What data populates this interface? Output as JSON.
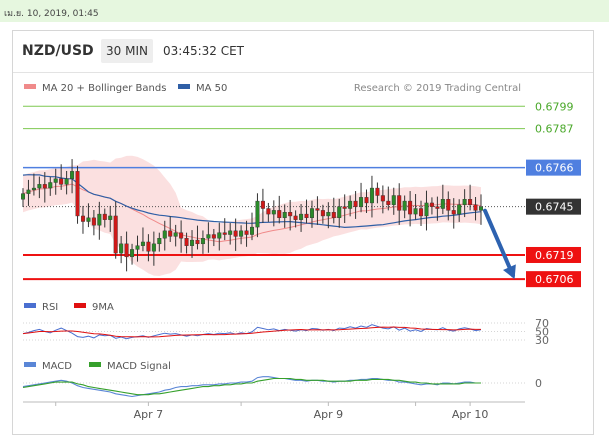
{
  "topbar": {
    "datetime": "เม.ย. 10, 2019, 01:45"
  },
  "header": {
    "symbol": "NZD/USD",
    "timeframe": "30 MIN",
    "time": "03:45:32 CET"
  },
  "main_legend": [
    {
      "label": "MA 20 + Bollinger Bands",
      "color": "#f08a8a"
    },
    {
      "label": "MA 50",
      "color": "#2f5fa6"
    }
  ],
  "credit": "Research © 2019 Trading Central",
  "chart_data": {
    "type": "candlestick",
    "price_range": [
      0.67,
      0.6805
    ],
    "levels": [
      {
        "value": 0.6799,
        "label": "0.6799",
        "kind": "target",
        "color": "#7ec850"
      },
      {
        "value": 0.6787,
        "label": "0.6787",
        "kind": "target",
        "color": "#7ec850"
      },
      {
        "value": 0.6766,
        "label": "0.6766",
        "kind": "resistance",
        "color": "#4f7fe0"
      },
      {
        "value": 0.6745,
        "label": "0.6745",
        "kind": "last",
        "color": "#333333"
      },
      {
        "value": 0.6719,
        "label": "0.6719",
        "kind": "support",
        "color": "#ee1111"
      },
      {
        "value": 0.6706,
        "label": "0.6706",
        "kind": "support",
        "color": "#ee1111"
      }
    ],
    "closes": [
      0.6752,
      0.6754,
      0.6755,
      0.6757,
      0.6755,
      0.6758,
      0.676,
      0.6757,
      0.676,
      0.6764,
      0.674,
      0.6737,
      0.6739,
      0.6735,
      0.6741,
      0.6738,
      0.674,
      0.672,
      0.6725,
      0.6718,
      0.6722,
      0.6724,
      0.6726,
      0.6721,
      0.6725,
      0.6728,
      0.6732,
      0.6729,
      0.6731,
      0.6728,
      0.6724,
      0.6727,
      0.6725,
      0.6728,
      0.673,
      0.6728,
      0.6731,
      0.673,
      0.6732,
      0.6729,
      0.6732,
      0.673,
      0.6734,
      0.6748,
      0.6744,
      0.6741,
      0.6743,
      0.6739,
      0.6742,
      0.674,
      0.6738,
      0.6741,
      0.6739,
      0.6744,
      0.6743,
      0.674,
      0.6742,
      0.6739,
      0.6745,
      0.6744,
      0.6748,
      0.6745,
      0.675,
      0.6747,
      0.6755,
      0.6751,
      0.6748,
      0.6746,
      0.6751,
      0.6743,
      0.6748,
      0.6741,
      0.6744,
      0.674,
      0.6747,
      0.6745,
      0.6744,
      0.6749,
      0.6743,
      0.6741,
      0.6746,
      0.6749,
      0.6746,
      0.6743,
      0.6745
    ],
    "forecast": {
      "direction": "down",
      "from": 0.6745,
      "to": 0.6708,
      "color": "#2d62b0"
    },
    "x_ticks": [
      {
        "index": 23,
        "label": "Apr 7"
      },
      {
        "index": 56,
        "label": "Apr 9"
      },
      {
        "index": 82,
        "label": "Apr 10"
      }
    ],
    "rsi": {
      "legend": [
        {
          "label": "RSI",
          "color": "#4a6fd0"
        },
        {
          "label": "9MA",
          "color": "#e01010"
        }
      ],
      "ticks": [
        {
          "value": 70,
          "label": "70"
        },
        {
          "value": 50,
          "label": "50"
        },
        {
          "value": 30,
          "label": "30"
        }
      ],
      "values": [
        45,
        48,
        52,
        55,
        50,
        47,
        53,
        58,
        52,
        46,
        38,
        36,
        39,
        35,
        42,
        40,
        41,
        34,
        37,
        33,
        36,
        38,
        40,
        36,
        40,
        43,
        46,
        44,
        45,
        42,
        39,
        42,
        40,
        43,
        45,
        43,
        46,
        45,
        47,
        44,
        47,
        45,
        49,
        60,
        57,
        54,
        56,
        52,
        55,
        53,
        51,
        54,
        52,
        57,
        56,
        53,
        55,
        52,
        58,
        57,
        61,
        58,
        63,
        60,
        66,
        62,
        58,
        56,
        61,
        53,
        58,
        51,
        54,
        50,
        57,
        55,
        54,
        59,
        53,
        51,
        56,
        59,
        56,
        52,
        54
      ]
    },
    "macd": {
      "legend": [
        {
          "label": "MACD",
          "color": "#5a86d6"
        },
        {
          "label": "MACD Signal",
          "color": "#36a02c"
        }
      ],
      "ticks": [
        {
          "value": 0,
          "label": "0"
        }
      ],
      "values": [
        -0.0004,
        -0.0003,
        -0.0002,
        -0.0001,
        0.0,
        0.0001,
        0.0002,
        0.0003,
        0.0002,
        0.0,
        -0.0003,
        -0.0005,
        -0.0006,
        -0.0007,
        -0.0008,
        -0.0009,
        -0.001,
        -0.0012,
        -0.0013,
        -0.0014,
        -0.0015,
        -0.0014,
        -0.0013,
        -0.0012,
        -0.0011,
        -0.001,
        -0.0008,
        -0.0007,
        -0.0005,
        -0.0004,
        -0.0004,
        -0.0003,
        -0.0003,
        -0.0002,
        -0.0002,
        -0.0002,
        -0.0001,
        -0.0001,
        0.0,
        0.0,
        0.0001,
        0.0001,
        0.0002,
        0.0006,
        0.0007,
        0.0007,
        0.0006,
        0.0005,
        0.0005,
        0.0004,
        0.0003,
        0.0003,
        0.0002,
        0.0003,
        0.0003,
        0.0002,
        0.0002,
        0.0001,
        0.0002,
        0.0002,
        0.0003,
        0.0003,
        0.0004,
        0.0004,
        0.0005,
        0.0005,
        0.0004,
        0.0003,
        0.0003,
        0.0001,
        0.0001,
        0.0,
        -0.0001,
        -0.0002,
        -0.0001,
        -0.0001,
        -0.0002,
        0.0,
        0.0,
        -0.0001,
        0.0,
        0.0001,
        0.0001,
        0.0,
        0.0
      ],
      "signal": [
        -0.0005,
        -0.0004,
        -0.0003,
        -0.0002,
        -0.0001,
        0.0,
        0.0001,
        0.0001,
        0.0001,
        0.0001,
        -0.0001,
        -0.0002,
        -0.0004,
        -0.0005,
        -0.0006,
        -0.0007,
        -0.0008,
        -0.0009,
        -0.001,
        -0.0011,
        -0.0012,
        -0.0013,
        -0.0013,
        -0.0013,
        -0.0012,
        -0.0012,
        -0.0011,
        -0.001,
        -0.0009,
        -0.0008,
        -0.0007,
        -0.0006,
        -0.0005,
        -0.0004,
        -0.0004,
        -0.0003,
        -0.0003,
        -0.0002,
        -0.0002,
        -0.0001,
        -0.0001,
        0.0,
        0.0,
        0.0002,
        0.0003,
        0.0004,
        0.0005,
        0.0005,
        0.0005,
        0.0005,
        0.0004,
        0.0004,
        0.0003,
        0.0003,
        0.0003,
        0.0003,
        0.0002,
        0.0002,
        0.0002,
        0.0002,
        0.0002,
        0.0003,
        0.0003,
        0.0003,
        0.0004,
        0.0004,
        0.0004,
        0.0004,
        0.0003,
        0.0003,
        0.0002,
        0.0001,
        0.0001,
        0.0,
        0.0,
        -0.0001,
        -0.0001,
        -0.0001,
        -0.0001,
        -0.0001,
        -0.0001,
        0.0,
        0.0,
        0.0,
        0.0
      ]
    }
  }
}
